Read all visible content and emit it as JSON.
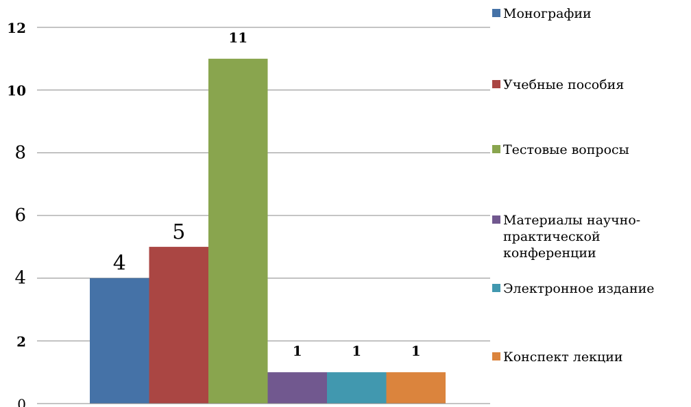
{
  "chart_data": {
    "type": "bar",
    "title": "",
    "xlabel": "",
    "ylabel": "",
    "ylim": [
      0,
      12
    ],
    "yticks": [
      "0",
      "2",
      "4",
      "6",
      "8",
      "10",
      "12"
    ],
    "grid": true,
    "legend_position": "right",
    "series": [
      {
        "name": "Монографии",
        "value": 4,
        "label": "4",
        "color": "#4572A7"
      },
      {
        "name": "Учебные пособия",
        "value": 5,
        "label": "5",
        "color": "#AA4643"
      },
      {
        "name": "Тестовые вопросы",
        "value": 11,
        "label": "11",
        "color": "#89A54E"
      },
      {
        "name": "Материалы научно-практической конференции",
        "value": 1,
        "label": "1",
        "color": "#71588F"
      },
      {
        "name": "Электронное издание",
        "value": 1,
        "label": "1",
        "color": "#4198AF"
      },
      {
        "name": "Конспект лекции",
        "value": 1,
        "label": "1",
        "color": "#DB843D"
      }
    ]
  }
}
